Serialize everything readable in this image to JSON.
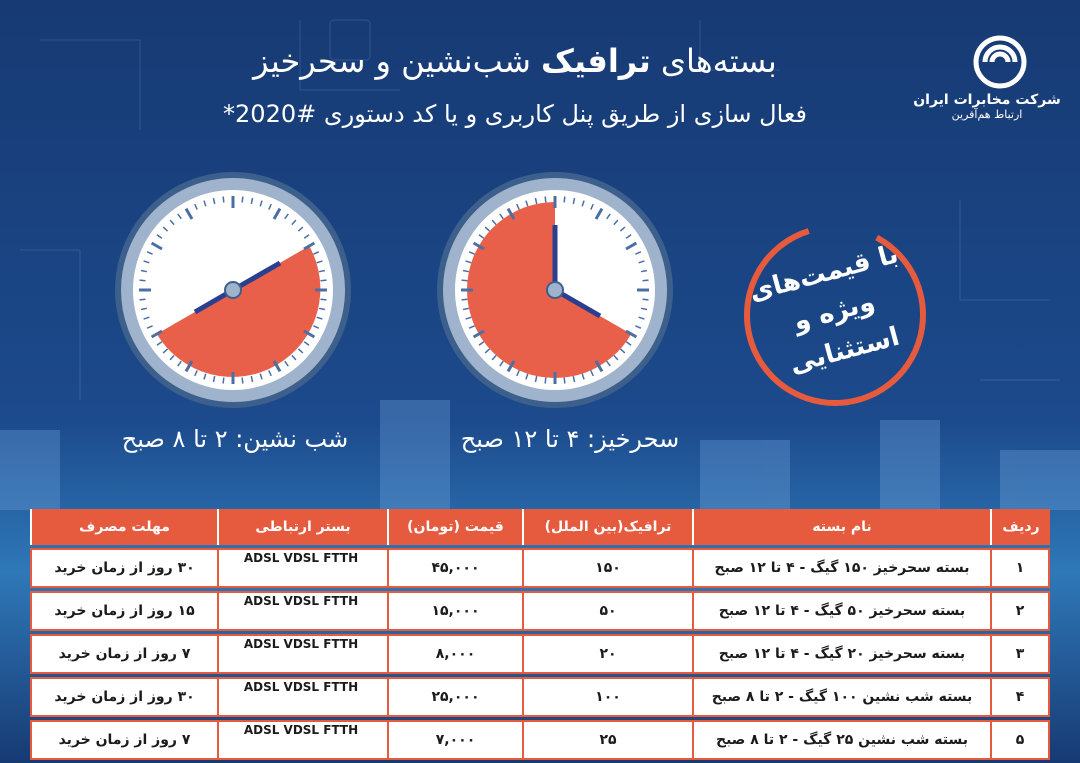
{
  "header": {
    "title_parts": [
      "بسته‌های",
      "ترافیک",
      "شب‌نشین و سحرخیز"
    ],
    "subtitle": "فعال سازی از طریق پنل کاربری و یا کد دستوری #2020*"
  },
  "logo": {
    "name": "شرکت مخابرات ایران",
    "slogan": "ارتباط هم‌آفرین"
  },
  "badge": {
    "lines": [
      "با قیمت‌های",
      "ویژه و",
      "استثنایی"
    ]
  },
  "clocks": [
    {
      "label": "سحرخیز: ۴ تا ۱۲ صبح"
    },
    {
      "label": "شب نشین: ۲ تا ۸ صبح"
    }
  ],
  "table": {
    "headers": [
      "ردیف",
      "نام بسته",
      "ترافیک(بین الملل)",
      "قیمت (تومان)",
      "بستر ارتباطی",
      "مهلت مصرف"
    ],
    "rows": [
      [
        "۱",
        "بسته سحرخیز ۱۵۰ گیگ - ۴ تا ۱۲ صبح",
        "۱۵۰",
        "۴۵,۰۰۰",
        "ADSL VDSL FTTH",
        "۳۰ روز از زمان خرید"
      ],
      [
        "۲",
        "بسته سحرخیز ۵۰ گیگ - ۴ تا ۱۲ صبح",
        "۵۰",
        "۱۵,۰۰۰",
        "ADSL VDSL FTTH",
        "۱۵ روز از زمان خرید"
      ],
      [
        "۳",
        "بسته سحرخیز ۲۰ گیگ - ۴ تا ۱۲ صبح",
        "۲۰",
        "۸,۰۰۰",
        "ADSL VDSL FTTH",
        "۷ روز از زمان خرید"
      ],
      [
        "۴",
        "بسته شب نشین ۱۰۰ گیگ - ۲ تا ۸ صبح",
        "۱۰۰",
        "۲۵,۰۰۰",
        "ADSL VDSL FTTH",
        "۳۰ روز از زمان خرید"
      ],
      [
        "۵",
        "بسته شب نشین ۲۵ گیگ - ۲ تا ۸ صبح",
        "۲۵",
        "۷,۰۰۰",
        "ADSL VDSL FTTH",
        "۷ روز از زمان خرید"
      ]
    ]
  }
}
